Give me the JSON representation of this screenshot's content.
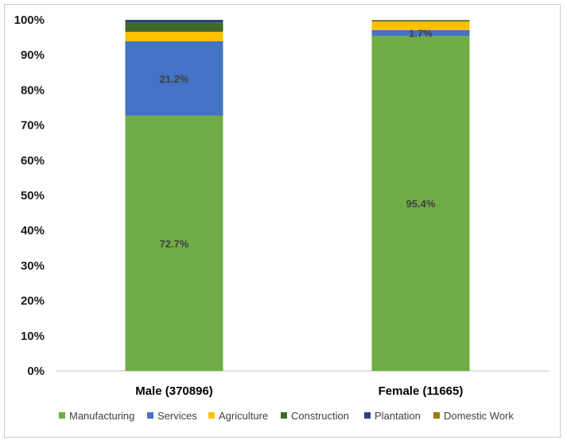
{
  "chart_data": {
    "type": "bar",
    "stacked": true,
    "title": "",
    "xlabel": "",
    "ylabel": "",
    "ylim": [
      0,
      100
    ],
    "yticks": [
      "0%",
      "10%",
      "20%",
      "30%",
      "40%",
      "50%",
      "60%",
      "70%",
      "80%",
      "90%",
      "100%"
    ],
    "categories": [
      "Male (370896)",
      "Female (11665)"
    ],
    "series": [
      {
        "name": "Manufacturing",
        "color": "#70ad47",
        "values": [
          72.7,
          95.4
        ],
        "labels": [
          "72.7%",
          "95.4%"
        ]
      },
      {
        "name": "Services",
        "color": "#4472c4",
        "values": [
          21.2,
          1.7
        ],
        "labels": [
          "21.2%",
          "1.7%"
        ]
      },
      {
        "name": "Agriculture",
        "color": "#ffc000",
        "values": [
          2.7,
          2.4
        ],
        "labels": [
          "",
          ""
        ]
      },
      {
        "name": "Construction",
        "color": "#43682b",
        "values": [
          2.7,
          0.2
        ],
        "labels": [
          "",
          ""
        ]
      },
      {
        "name": "Plantation",
        "color": "#264478",
        "values": [
          0.7,
          0.1
        ],
        "labels": [
          "",
          ""
        ]
      },
      {
        "name": "Domestic Work",
        "color": "#9e7c0c",
        "values": [
          0.0,
          0.2
        ],
        "labels": [
          "",
          ""
        ]
      }
    ],
    "legend": "bottom",
    "grid": false
  }
}
